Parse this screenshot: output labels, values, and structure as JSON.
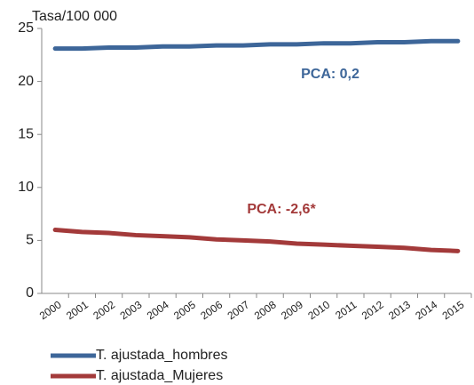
{
  "chart_data": {
    "type": "line",
    "y_label": "Tasa/100 000",
    "categories": [
      "2000",
      "2001",
      "2002",
      "2003",
      "2004",
      "2005",
      "2006",
      "2007",
      "2008",
      "2009",
      "2010",
      "2011",
      "2012",
      "2013",
      "2014",
      "2015"
    ],
    "series": [
      {
        "name": "T. ajustada_hombres",
        "color": "#3d6699",
        "values": [
          23.1,
          23.1,
          23.2,
          23.2,
          23.3,
          23.3,
          23.4,
          23.4,
          23.5,
          23.5,
          23.6,
          23.6,
          23.7,
          23.7,
          23.8,
          23.8
        ]
      },
      {
        "name": "T. ajustada_Mujeres",
        "color": "#a33a3a",
        "values": [
          6.0,
          5.8,
          5.7,
          5.5,
          5.4,
          5.3,
          5.1,
          5.0,
          4.9,
          4.7,
          4.6,
          4.5,
          4.4,
          4.3,
          4.1,
          4.0
        ]
      }
    ],
    "annotations": [
      {
        "text": "PCA: 0,2",
        "color": "#3d6699"
      },
      {
        "text": "PCA: -2,6*",
        "color": "#a33a3a"
      }
    ],
    "ylim": [
      0,
      25
    ],
    "yticks": [
      0,
      5,
      10,
      15,
      20,
      25
    ],
    "grid": false
  }
}
